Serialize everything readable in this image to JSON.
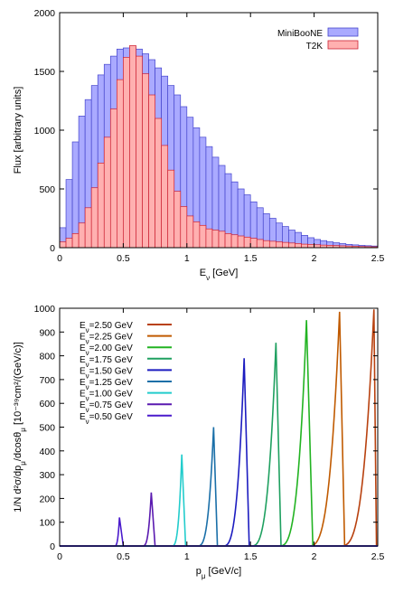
{
  "chart_data": [
    {
      "type": "bar",
      "xlabel": "E_ν [GeV]",
      "ylabel": "Flux [arbitrary units]",
      "xlim": [
        0,
        2.5
      ],
      "ylim": [
        0,
        2000
      ],
      "xticks": [
        "0",
        "0.5",
        "1",
        "1.5",
        "2",
        "2.5"
      ],
      "yticks": [
        "0",
        "500",
        "1000",
        "1500",
        "2000"
      ],
      "bin_width": 0.05,
      "legend": "top-right",
      "series": [
        {
          "name": "MiniBooNE",
          "color": "#aaaaff",
          "edge": "#4444cc",
          "values": [
            170,
            580,
            900,
            1120,
            1260,
            1380,
            1470,
            1560,
            1630,
            1690,
            1700,
            1710,
            1690,
            1650,
            1600,
            1530,
            1460,
            1380,
            1300,
            1200,
            1110,
            1020,
            940,
            860,
            770,
            700,
            630,
            560,
            500,
            450,
            390,
            340,
            290,
            250,
            210,
            180,
            150,
            130,
            105,
            85,
            70,
            60,
            50,
            42,
            35,
            28,
            24,
            20,
            17,
            14
          ]
        },
        {
          "name": "T2K",
          "color": "#ffb0b0",
          "edge": "#cc2233",
          "values": [
            50,
            80,
            120,
            210,
            340,
            510,
            720,
            940,
            1180,
            1430,
            1620,
            1720,
            1630,
            1480,
            1300,
            1100,
            870,
            660,
            480,
            350,
            270,
            220,
            190,
            160,
            150,
            140,
            120,
            110,
            100,
            90,
            80,
            70,
            60,
            55,
            50,
            45,
            40,
            35,
            30,
            28,
            25,
            22,
            20,
            18,
            16,
            14,
            12,
            10,
            9,
            8
          ]
        }
      ]
    },
    {
      "type": "line",
      "xlabel": "p_μ [GeV/c]",
      "ylabel": "1/N d²σ/dp_μ/dcosθ_μ [10⁻³⁹cm²/(GeV/c)]",
      "xlim": [
        0,
        2.5
      ],
      "ylim": [
        0,
        1000
      ],
      "xticks": [
        "0",
        "0.5",
        "1",
        "1.5",
        "2",
        "2.5"
      ],
      "yticks": [
        "0",
        "100",
        "200",
        "300",
        "400",
        "500",
        "600",
        "700",
        "800",
        "900",
        "1000"
      ],
      "legend": "top-left",
      "series": [
        {
          "name": "E_ν=2.50 GeV",
          "color": "#b8410f",
          "peak_x": 2.47,
          "peak_y": 995,
          "left_x": 2.2,
          "right_x": 2.49
        },
        {
          "name": "E_ν=2.25 GeV",
          "color": "#c05a00",
          "peak_x": 2.2,
          "peak_y": 985,
          "left_x": 1.95,
          "right_x": 2.24
        },
        {
          "name": "E_ν=2.00 GeV",
          "color": "#22b322",
          "peak_x": 1.94,
          "peak_y": 950,
          "left_x": 1.72,
          "right_x": 1.99
        },
        {
          "name": "E_ν=1.75 GeV",
          "color": "#1fa060",
          "peak_x": 1.7,
          "peak_y": 855,
          "left_x": 1.5,
          "right_x": 1.74
        },
        {
          "name": "E_ν=1.50 GeV",
          "color": "#1c1cc0",
          "peak_x": 1.45,
          "peak_y": 790,
          "left_x": 1.28,
          "right_x": 1.49
        },
        {
          "name": "E_ν=1.25 GeV",
          "color": "#1a6fa8",
          "peak_x": 1.21,
          "peak_y": 500,
          "left_x": 1.08,
          "right_x": 1.24
        },
        {
          "name": "E_ν=1.00 GeV",
          "color": "#22cccc",
          "peak_x": 0.96,
          "peak_y": 385,
          "left_x": 0.88,
          "right_x": 0.99
        },
        {
          "name": "E_ν=0.75 GeV",
          "color": "#5a1ab0",
          "peak_x": 0.72,
          "peak_y": 225,
          "left_x": 0.65,
          "right_x": 0.75
        },
        {
          "name": "E_ν=0.50 GeV",
          "color": "#4a1acc",
          "peak_x": 0.47,
          "peak_y": 120,
          "left_x": 0.43,
          "right_x": 0.5
        }
      ]
    }
  ]
}
